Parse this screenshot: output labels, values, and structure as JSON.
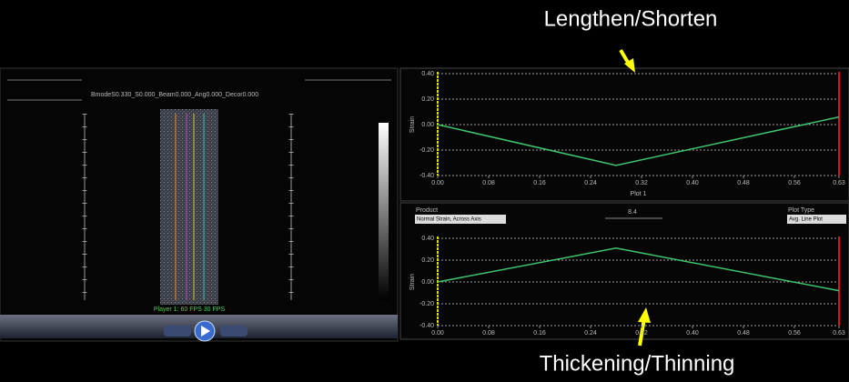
{
  "annotations": {
    "top": "Lengthen/Shorten",
    "bottom": "Thickening/Thinning"
  },
  "ui": {
    "left_header": "BmodeS0.330_S0.000_Beam0.000_Ang0.000_Decor0.000",
    "player": "Player 1: 60 FPS  30 FPS",
    "product_label": "Product",
    "product_value": "Normal Strain, Across Axis",
    "slider_value": "8.4",
    "plot_type_label": "Plot Type",
    "plot_type_value": "Avg. Line Plot"
  },
  "chart_data": [
    {
      "type": "line",
      "x_label": "Plot 1",
      "y_label": "Strain",
      "xlim": [
        0,
        0.63
      ],
      "ylim": [
        -0.4,
        0.4
      ],
      "xticks": [
        {
          "value": 0,
          "label": "0.00"
        },
        0.08,
        0.16,
        0.24,
        0.32,
        {
          "value": 0.4,
          "label": "0.40"
        },
        0.48,
        0.56,
        0.63
      ],
      "yticks": [
        {
          "value": 0.4,
          "label": "0.40"
        },
        {
          "value": 0.2,
          "label": "0.20"
        },
        {
          "value": 0,
          "label": "0.00"
        },
        {
          "value": -0.2,
          "label": "-0.20"
        },
        {
          "value": -0.4,
          "label": "-0.40"
        }
      ],
      "grid": true,
      "series": [
        {
          "color": "#3ec46d",
          "x": [
            0,
            0.28,
            0.63
          ],
          "values": [
            0,
            -0.32,
            0.06
          ]
        }
      ]
    },
    {
      "type": "line",
      "y_label": "Strain",
      "xlim": [
        0,
        0.63
      ],
      "ylim": [
        -0.4,
        0.4
      ],
      "xticks": [
        {
          "value": 0,
          "label": "0.00"
        },
        0.08,
        0.16,
        0.24,
        0.32,
        {
          "value": 0.4,
          "label": "0.40"
        },
        0.48,
        0.56,
        0.63
      ],
      "yticks": [
        {
          "value": 0.4,
          "label": "0.40"
        },
        {
          "value": 0.2,
          "label": "0.20"
        },
        {
          "value": 0,
          "label": "0.00"
        },
        {
          "value": -0.2,
          "label": "-0.20"
        },
        {
          "value": -0.4,
          "label": "-0.40"
        }
      ],
      "grid": true,
      "series": [
        {
          "color": "#3ec46d",
          "x": [
            0,
            0.28,
            0.63
          ],
          "values": [
            0,
            0.31,
            -0.08
          ]
        }
      ]
    }
  ]
}
